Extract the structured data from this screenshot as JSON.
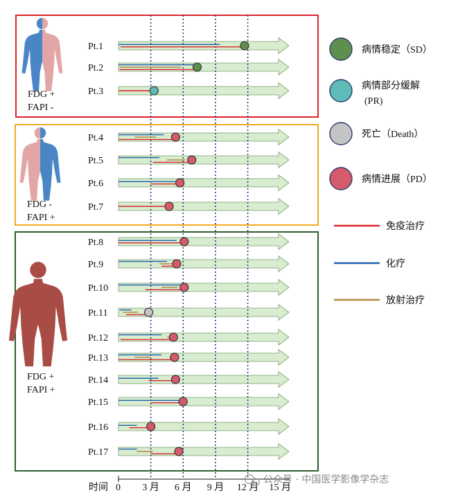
{
  "groups": [
    {
      "label_line1": "FDG +",
      "label_line2": "FAPI -",
      "border_color": "#d9232a",
      "figure_color": "split-blue-pink"
    },
    {
      "label_line1": "FDG -",
      "label_line2": "FAPI +",
      "border_color": "#f2a923",
      "figure_color": "split-pink-blue"
    },
    {
      "label_line1": "FDG +",
      "label_line2": "FAPI +",
      "border_color": "#2e5c2e",
      "figure_color": "brown"
    }
  ],
  "patients": [
    {
      "label": "Pt.1",
      "group": 0,
      "outcome": "SD",
      "end": 11.7,
      "lines": [
        {
          "therapy": "chemo",
          "start": 0,
          "end": 9.4
        },
        {
          "therapy": "immuno",
          "start": 0.2,
          "end": 11.7
        }
      ]
    },
    {
      "label": "Pt.2",
      "group": 0,
      "outcome": "SD",
      "end": 7.3,
      "lines": [
        {
          "therapy": "chemo",
          "start": 0,
          "end": 7.3
        },
        {
          "therapy": "radio",
          "start": 0.1,
          "end": 5.8
        },
        {
          "therapy": "immuno",
          "start": 0.1,
          "end": 7.3
        }
      ]
    },
    {
      "label": "Pt.3",
      "group": 0,
      "outcome": "PR",
      "end": 3.3,
      "lines": [
        {
          "therapy": "immuno",
          "start": 0,
          "end": 3.3
        }
      ]
    },
    {
      "label": "Pt.4",
      "group": 1,
      "outcome": "PD",
      "end": 5.3,
      "lines": [
        {
          "therapy": "chemo",
          "start": 0,
          "end": 4.2
        },
        {
          "therapy": "radio",
          "start": 1.5,
          "end": 3.5
        },
        {
          "therapy": "immuno",
          "start": 0,
          "end": 5.3
        }
      ]
    },
    {
      "label": "Pt.5",
      "group": 1,
      "outcome": "PD",
      "end": 6.8,
      "lines": [
        {
          "therapy": "chemo",
          "start": 0,
          "end": 3.8
        },
        {
          "therapy": "radio",
          "start": 4.5,
          "end": 6.2
        },
        {
          "therapy": "immuno",
          "start": 3.2,
          "end": 6.8
        }
      ]
    },
    {
      "label": "Pt.6",
      "group": 1,
      "outcome": "PD",
      "end": 5.7,
      "lines": [
        {
          "therapy": "chemo",
          "start": 0,
          "end": 5.7
        },
        {
          "therapy": "immuno",
          "start": 3.0,
          "end": 5.7
        }
      ]
    },
    {
      "label": "Pt.7",
      "group": 1,
      "outcome": "PD",
      "end": 4.7,
      "lines": [
        {
          "therapy": "immuno",
          "start": 0,
          "end": 4.7
        }
      ]
    },
    {
      "label": "Pt.8",
      "group": 2,
      "outcome": "PD",
      "end": 6.1,
      "lines": [
        {
          "therapy": "chemo",
          "start": 0,
          "end": 5.4
        },
        {
          "therapy": "immuno",
          "start": 0,
          "end": 6.1
        }
      ]
    },
    {
      "label": "Pt.9",
      "group": 2,
      "outcome": "PD",
      "end": 5.4,
      "lines": [
        {
          "therapy": "chemo",
          "start": 0,
          "end": 4.5
        },
        {
          "therapy": "radio",
          "start": 3.8,
          "end": 5.2
        },
        {
          "therapy": "immuno",
          "start": 4.0,
          "end": 5.4
        }
      ]
    },
    {
      "label": "Pt.10",
      "group": 2,
      "outcome": "PD",
      "end": 6.1,
      "lines": [
        {
          "therapy": "chemo",
          "start": 0,
          "end": 6.1
        },
        {
          "therapy": "radio",
          "start": 4.0,
          "end": 5.5
        },
        {
          "therapy": "immuno",
          "start": 2.5,
          "end": 6.1
        }
      ]
    },
    {
      "label": "Pt.11",
      "group": 2,
      "outcome": "Death",
      "end": 2.8,
      "lines": [
        {
          "therapy": "chemo",
          "start": 0.1,
          "end": 1.2
        },
        {
          "therapy": "radio",
          "start": 0.4,
          "end": 1.8
        },
        {
          "therapy": "immuno",
          "start": 0.7,
          "end": 2.8
        }
      ]
    },
    {
      "label": "Pt.12",
      "group": 2,
      "outcome": "PD",
      "end": 5.1,
      "lines": [
        {
          "therapy": "chemo",
          "start": 0,
          "end": 4.0
        },
        {
          "therapy": "radio",
          "start": 4.5,
          "end": 5.1
        },
        {
          "therapy": "immuno",
          "start": 0.2,
          "end": 5.1
        }
      ]
    },
    {
      "label": "Pt.13",
      "group": 2,
      "outcome": "PD",
      "end": 5.2,
      "lines": [
        {
          "therapy": "chemo",
          "start": 0,
          "end": 4.0
        },
        {
          "therapy": "radio",
          "start": 1.5,
          "end": 3.0
        },
        {
          "therapy": "immuno",
          "start": 0,
          "end": 5.2
        }
      ]
    },
    {
      "label": "Pt.14",
      "group": 2,
      "outcome": "PD",
      "end": 5.3,
      "lines": [
        {
          "therapy": "chemo",
          "start": 0,
          "end": 3.7
        },
        {
          "therapy": "immuno",
          "start": 2.8,
          "end": 5.3
        }
      ]
    },
    {
      "label": "Pt.15",
      "group": 2,
      "outcome": "PD",
      "end": 6.0,
      "lines": [
        {
          "therapy": "chemo",
          "start": 0,
          "end": 6.0
        },
        {
          "therapy": "immuno",
          "start": 3.0,
          "end": 6.0
        }
      ]
    },
    {
      "label": "Pt.16",
      "group": 2,
      "outcome": "PD",
      "end": 3.0,
      "lines": [
        {
          "therapy": "chemo",
          "start": 0,
          "end": 1.7
        },
        {
          "therapy": "immuno",
          "start": 1.0,
          "end": 3.0
        }
      ]
    },
    {
      "label": "Pt.17",
      "group": 2,
      "outcome": "PD",
      "end": 5.6,
      "lines": [
        {
          "therapy": "chemo",
          "start": 0,
          "end": 1.7
        },
        {
          "therapy": "radio",
          "start": 1.7,
          "end": 3.2
        },
        {
          "therapy": "immuno",
          "start": 3.0,
          "end": 5.6
        }
      ]
    }
  ],
  "outcome_legend": [
    {
      "key": "SD",
      "label": "病情稳定（SD）",
      "color": "#5f8f4e"
    },
    {
      "key": "PR",
      "label_line1": "病情部分缓解",
      "label_line2": "(PR)",
      "color": "#5fbcb8"
    },
    {
      "key": "Death",
      "label": "死亡（Death）",
      "color": "#c4c4c4"
    },
    {
      "key": "PD",
      "label": "病情进展（PD）",
      "color": "#d45a6c"
    }
  ],
  "therapy_legend": [
    {
      "key": "immuno",
      "label": "免疫治疗",
      "color": "#d9232a"
    },
    {
      "key": "chemo",
      "label": "化疗",
      "color": "#1f5fae"
    },
    {
      "key": "radio",
      "label": "放射治疗",
      "color": "#b38a45"
    }
  ],
  "axis": {
    "title": "时间",
    "zero_label": "0",
    "ticks": [
      {
        "value": 3,
        "label": "3 月"
      },
      {
        "value": 6,
        "label": "6 月"
      },
      {
        "value": 9,
        "label": "9 月"
      },
      {
        "value": 12,
        "label": "12 月"
      },
      {
        "value": 15,
        "label": "15 月"
      }
    ],
    "dotted_lines_at": [
      3,
      6,
      9,
      12
    ],
    "arrow_fill": "#d8ecd0",
    "arrow_stroke": "#7a9e6a"
  },
  "watermark": "公众号 · 中国医学影像学杂志"
}
